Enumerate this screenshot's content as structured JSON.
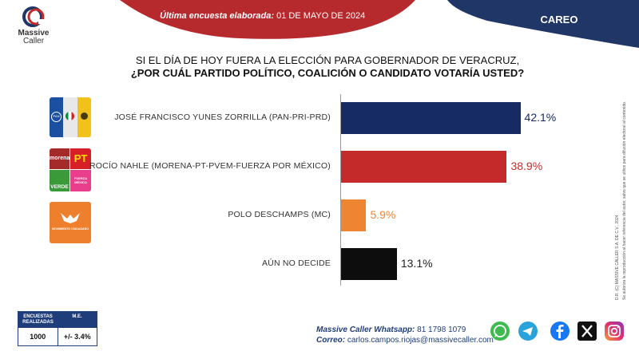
{
  "header": {
    "brand_line1": "Massive",
    "brand_line2": "Caller",
    "survey_label": "Última encuesta elaborada:",
    "survey_date": " 01 DE MAYO DE 2024",
    "section": "CAREO"
  },
  "question": {
    "line1": "SI EL DÍA DE HOY FUERA LA ELECCIÓN PARA GOBERNADOR DE VERACRUZ,",
    "line2": "¿POR CUÁL PARTIDO POLÍTICO, COALICIÓN O CANDIDATO VOTARÍA USTED?"
  },
  "parties": {
    "pan": "PAN",
    "morena": "morena",
    "pt": "PT",
    "verde": "VERDE",
    "pm": "FUERZA MÉXICO",
    "mc": "MOVIMIENTO CIUDADANO"
  },
  "chart_data": {
    "type": "bar",
    "orientation": "horizontal",
    "categories": [
      "JOSÉ FRANCISCO YUNES ZORRILLA (PAN-PRI-PRD)",
      "ROCÍO NAHLE (MORENA-PT-PVEM-FUERZA POR MÉXICO)",
      "POLO DESCHAMPS (MC)",
      "AÚN NO DECIDE"
    ],
    "values": [
      42.1,
      38.9,
      5.9,
      13.1
    ],
    "value_labels": [
      "42.1%",
      "38.9%",
      "5.9%",
      "13.1%"
    ],
    "colors": [
      "#162a63",
      "#c42a2a",
      "#ee8533",
      "#0d0d0d"
    ],
    "label_colors": [
      "#162a63",
      "#c42a2a",
      "#ee8533",
      "#222222"
    ],
    "title": "",
    "xlim": [
      0,
      45
    ],
    "grid": false,
    "legend": "none"
  },
  "margin_table": {
    "col1_header": "ENCUESTAS REALIZADAS",
    "col2_header": "M.E.",
    "surveys": "1000",
    "margin": "+/- 3.4%"
  },
  "contact": {
    "whatsapp_label": "Massive Caller Whatsapp:",
    "whatsapp_number": " 81 1798 1079",
    "email_label": "Correo:",
    "email_value": " carlos.campos.riojas@massivecaller.com"
  },
  "side_notes": {
    "copyright": "D.R. (C) MASSIVE CALLER S.A. DE C.V., 2024",
    "notice": "Se autoriza la reproducción al hacer referencia del autor, salvo que se utilice para difusión electoral al contenido."
  },
  "social_icons": [
    "whatsapp-icon",
    "telegram-icon",
    "facebook-icon",
    "x-icon",
    "instagram-icon"
  ]
}
